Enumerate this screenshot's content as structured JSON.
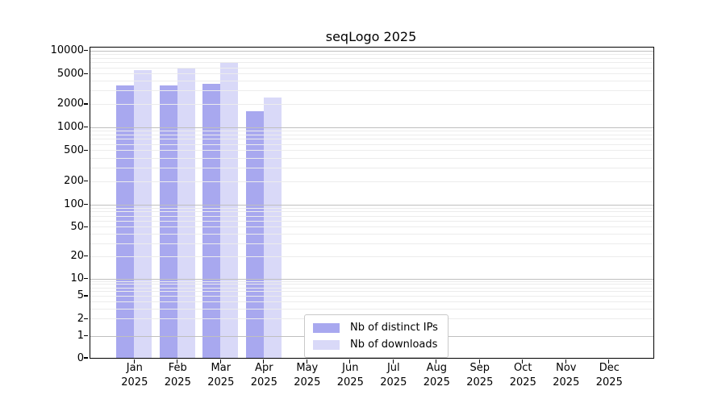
{
  "chart_data": {
    "type": "bar",
    "title": "seqLogo 2025",
    "year": "2025",
    "categories": [
      "Jan",
      "Feb",
      "Mar",
      "Apr",
      "May",
      "Jun",
      "Jul",
      "Aug",
      "Sep",
      "Oct",
      "Nov",
      "Dec"
    ],
    "series": [
      {
        "name": "Nb of distinct IPs",
        "color": "#a8a8ef",
        "values": [
          3500,
          3450,
          3700,
          1600,
          0,
          0,
          0,
          0,
          0,
          0,
          0,
          0
        ]
      },
      {
        "name": "Nb of downloads",
        "color": "#d9d9f8",
        "values": [
          5500,
          6000,
          7000,
          2400,
          0,
          0,
          0,
          0,
          0,
          0,
          0,
          0
        ]
      }
    ],
    "yscale": "symlog",
    "ylim": [
      0,
      10800
    ],
    "yticks": [
      10000,
      5000,
      2000,
      1000,
      500,
      200,
      100,
      50,
      20,
      10,
      5,
      2,
      1,
      0
    ],
    "grid": true,
    "legend_position": "lower center"
  },
  "colors": {
    "grid_minor": "#ececec",
    "grid_major": "#bfbfbf",
    "spine": "#000000",
    "bar_distinct_ips": "#a8a8ef",
    "bar_downloads": "#d9d9f8",
    "legend_border": "#c9c9c9"
  }
}
